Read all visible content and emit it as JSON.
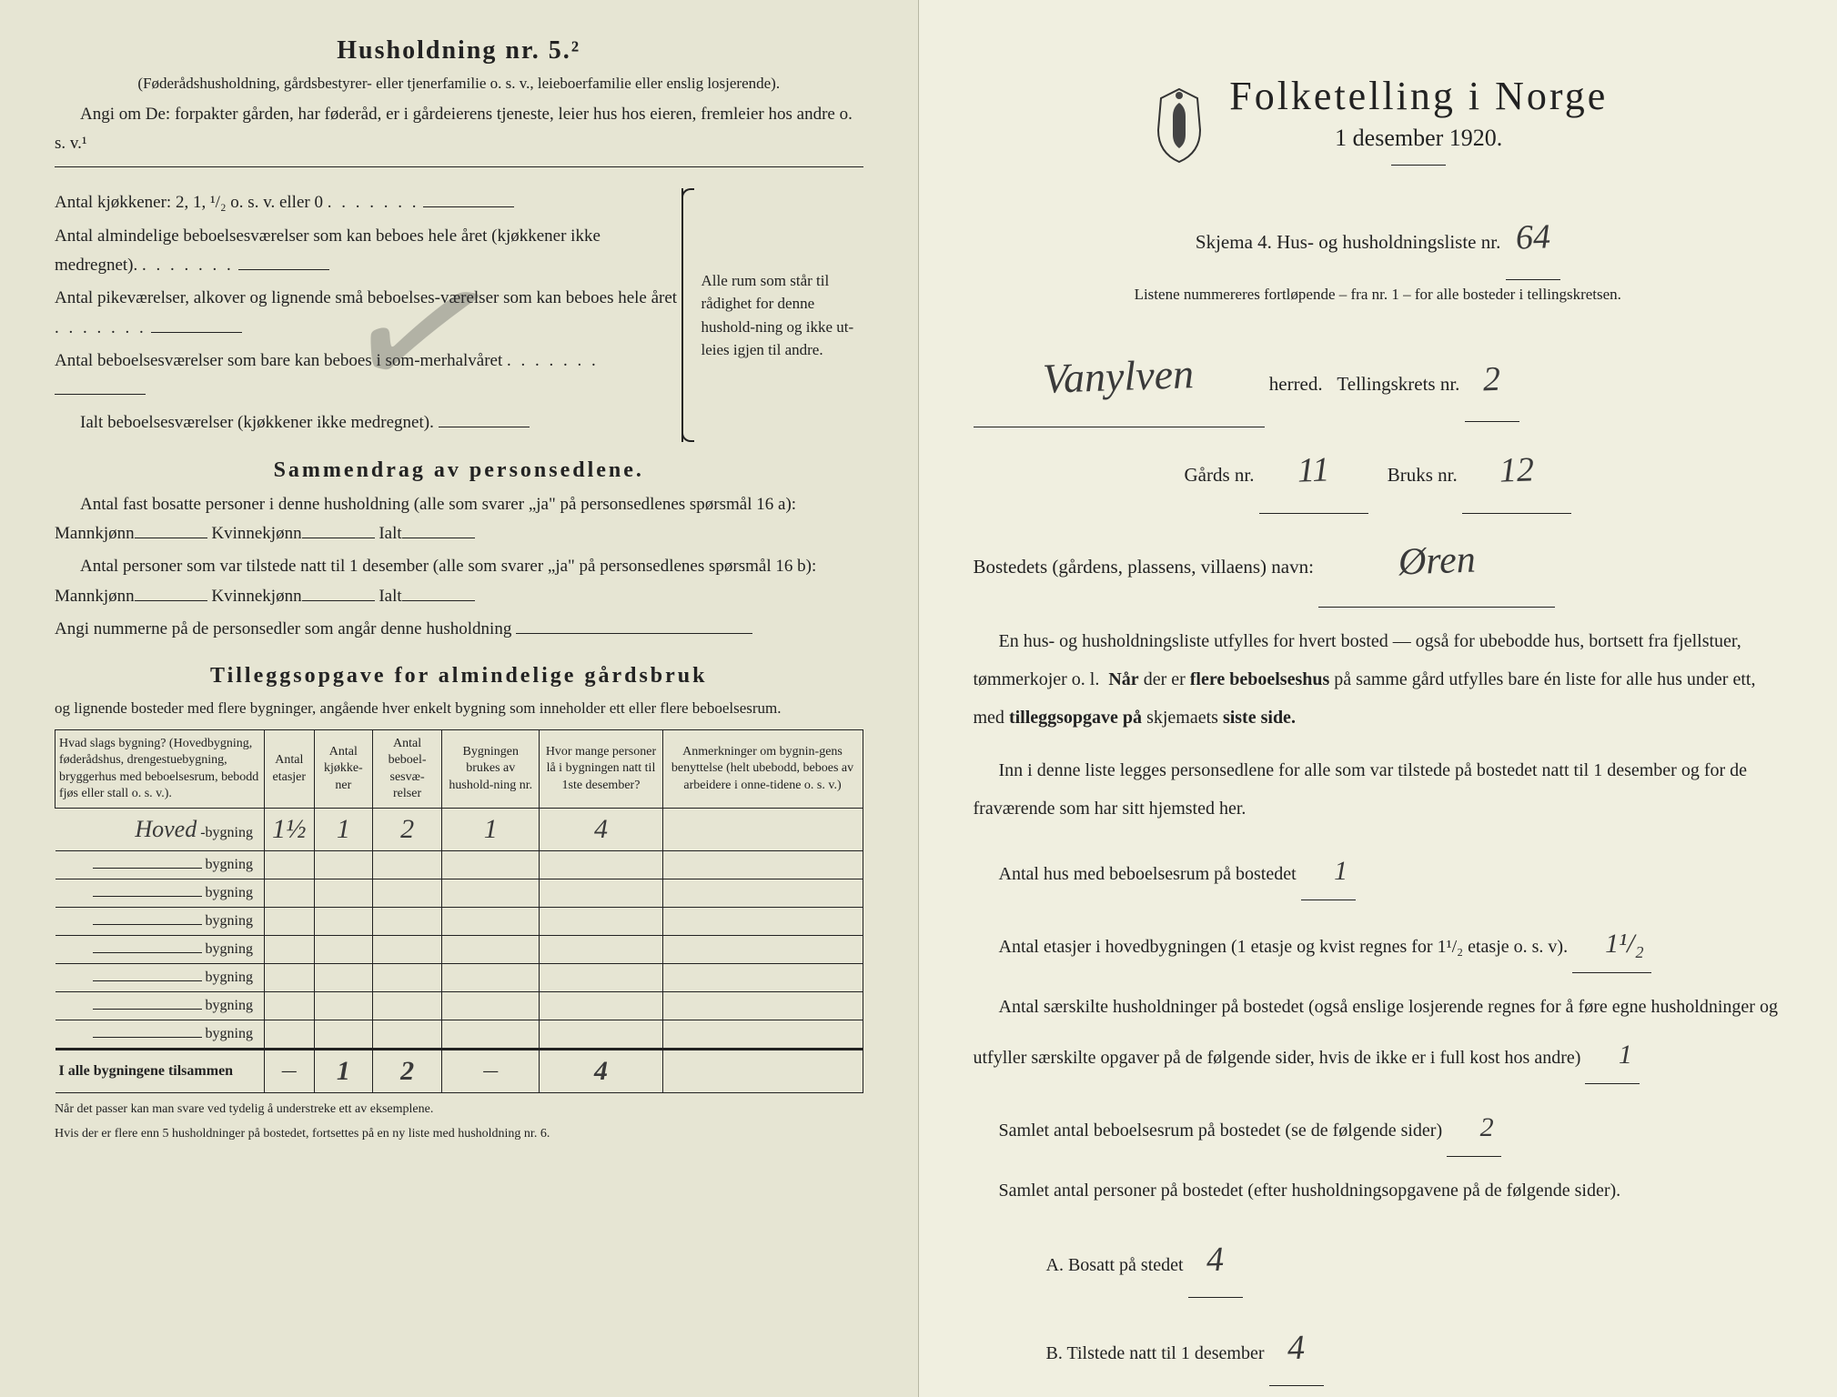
{
  "left": {
    "heading": "Husholdning nr. 5.²",
    "sub1": "(Føderådshusholdning, gårdsbestyrer- eller tjenerfamilie o. s. v., leieboerfamilie eller enslig losjerende).",
    "sub2": "Angi om De: forpakter gården, har føderåd, er i gårdeierens tjeneste, leier hus hos eieren, fremleier hos andre o. s. v.¹",
    "kitchens_label": "Antal kjøkkener: 2, 1, ¹/₂ o. s. v. eller 0",
    "rooms1": "Antal almindelige beboelsesværelser som kan beboes hele året (kjøkkener ikke medregnet).",
    "rooms2": "Antal pikeværelser, alkover og lignende små beboelses-værelser som kan beboes hele året",
    "rooms3": "Antal beboelsesværelser som bare kan beboes i som-merhalvåret",
    "rooms_total": "Ialt beboelsesværelser (kjøkkener ikke medregnet).",
    "brace_text": "Alle rum som står til rådighet for denne hushold-ning og ikke ut-leies igjen til andre.",
    "summary_title": "Sammendrag av personsedlene.",
    "summary1a": "Antal fast bosatte personer i denne husholdning (alle som svarer „ja\" på personsedlenes spørsmål 16 a): Mannkjønn",
    "summary1b": "Kvinnekjønn",
    "summary1c": "Ialt",
    "summary2a": "Antal personer som var tilstede natt til 1 desember (alle som svarer „ja\" på personsedlenes spørsmål 16 b): Mannkjønn",
    "summary3": "Angi nummerne på de personsedler som angår denne husholdning",
    "suppl_title": "Tilleggsopgave for almindelige gårdsbruk",
    "suppl_sub": "og lignende bosteder med flere bygninger, angående hver enkelt bygning som inneholder ett eller flere beboelsesrum.",
    "table": {
      "headers": [
        "Hvad slags bygning?\n(Hovedbygning, føderådshus, drengestuebygning, bryggerhus med beboelsesrum, bebodd fjøs eller stall o. s. v.).",
        "Antal etasjer",
        "Antal kjøkke-ner",
        "Antal beboel-sesvæ-relser",
        "Bygningen brukes av hushold-ning nr.",
        "Hvor mange personer lå i bygningen natt til 1ste desember?",
        "Anmerkninger om bygnin-gens benyttelse (helt ubebodd, beboes av arbeidere i onne-tidene o. s. v.)"
      ],
      "row1": {
        "label": "Hoved",
        "suffix": "-bygning",
        "etasjer": "1½",
        "kjokkener": "1",
        "beboelse": "2",
        "husholdning": "1",
        "personer": "4",
        "anm": ""
      },
      "empty_rows": [
        "bygning",
        "bygning",
        "bygning",
        "bygning",
        "bygning",
        "bygning",
        "bygning"
      ],
      "total_label": "I alle bygningene tilsammen",
      "total": {
        "etasjer": "—",
        "kjokkener": "1",
        "beboelse": "2",
        "husholdning": "—",
        "personer": "4",
        "anm": ""
      }
    },
    "footnote1": "Når det passer kan man svare ved tydelig å understreke ett av eksemplene.",
    "footnote2": "Hvis der er flere enn 5 husholdninger på bostedet, fortsettes på en ny liste med husholdning nr. 6."
  },
  "right": {
    "title": "Folketelling i Norge",
    "date": "1 desember 1920.",
    "skjema_label": "Skjema 4.  Hus- og husholdningsliste nr.",
    "skjema_nr": "64",
    "liste_note": "Listene nummereres fortløpende – fra nr. 1 – for alle bosteder i tellingskretsen.",
    "herred": "Vanylven",
    "herred_suffix": "herred.",
    "tellingskrets_label": "Tellingskrets nr.",
    "tellingskrets_nr": "2",
    "gards_label": "Gårds nr.",
    "gards_nr": "11",
    "bruks_label": "Bruks nr.",
    "bruks_nr": "12",
    "bosted_label": "Bostedets (gårdens, plassens, villaens) navn:",
    "bosted_navn": "Øren",
    "para1": "En hus- og husholdningsliste utfylles for hvert bosted — også for ubebodde hus, bortsett fra fjellstuer, tømmerkojer o. l.  Når der er flere beboelseshus på samme gård utfylles bare én liste for alle hus under ett, med tilleggsopgave på skjemaets siste side.",
    "para2": "Inn i denne liste legges personsedlene for alle som var tilstede på bostedet natt til 1 desember og for de fraværende som har sitt hjemsted her.",
    "q1": "Antal hus med beboelsesrum på bostedet",
    "q1_val": "1",
    "q2": "Antal etasjer i hovedbygningen (1 etasje og kvist regnes for 1¹/₂ etasje o. s. v).",
    "q2_val": "1¹/₂",
    "q3": "Antal særskilte husholdninger på bostedet (også enslige losjerende regnes for å føre egne husholdninger og utfyller særskilte opgaver på de følgende sider, hvis de ikke er i full kost hos andre)",
    "q3_val": "1",
    "q4": "Samlet antal beboelsesrum på bostedet (se de følgende sider)",
    "q4_val": "2",
    "q5": "Samlet antal personer på bostedet (efter husholdningsopgavene på de følgende sider).",
    "q5a_label": "A.  Bosatt på stedet",
    "q5a_val": "4",
    "q5b_label": "B.  Tilstede natt til 1 desember",
    "q5b_val": "4"
  },
  "colors": {
    "paper_left": "#e6e5d3",
    "paper_right": "#f0efe0",
    "ink": "#222222",
    "pencil": "#3a3a3a"
  }
}
